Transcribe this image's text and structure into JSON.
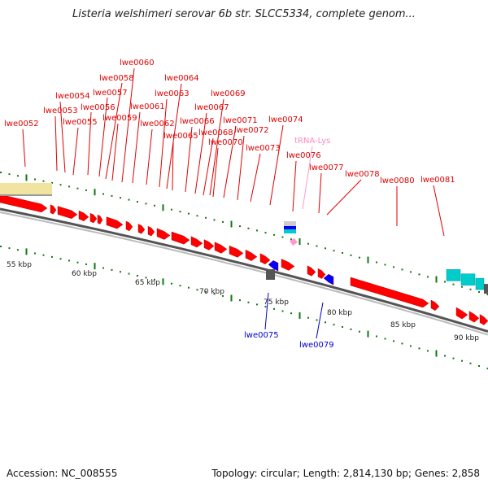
{
  "title": "Listeria welshimeri serovar 6b str. SLCC5334, complete genom...",
  "footer": {
    "accession": "Accession: NC_008555",
    "summary": "Topology: circular; Length: 2,814,130 bp; Genes: 2,858"
  },
  "colors": {
    "forward_gene": "#ff0000",
    "reverse_gene": "#0000ff",
    "trna": "#ff99cc",
    "cyan_feature": "#00cccc",
    "beige_feature": "#f0e4a0",
    "tick": "#117711",
    "backbone": "#777777"
  },
  "scale_labels": [
    "55 kbp",
    "60 kbp",
    "65 kbp",
    "70 kbp",
    "75 kbp",
    "80 kbp",
    "85 kbp",
    "90 kbp"
  ],
  "top_labels": [
    "lwe0052",
    "lwe0053",
    "lwe0054",
    "lwe0055",
    "lwe0056",
    "lwe0057",
    "lwe0058",
    "lwe0059",
    "lwe0060",
    "lwe0061",
    "lwe0062",
    "lwe0063",
    "lwe0064",
    "lwe0065",
    "lwe0066",
    "lwe0067",
    "lwe0068",
    "lwe0069",
    "lwe0070",
    "lwe0071",
    "lwe0072",
    "lwe0073",
    "lwe0074",
    "tRNA-Lys",
    "lwe0076",
    "lwe0077",
    "lwe0078",
    "lwe0080",
    "lwe0081"
  ],
  "bottom_labels": [
    "lwe0075",
    "lwe0079"
  ]
}
